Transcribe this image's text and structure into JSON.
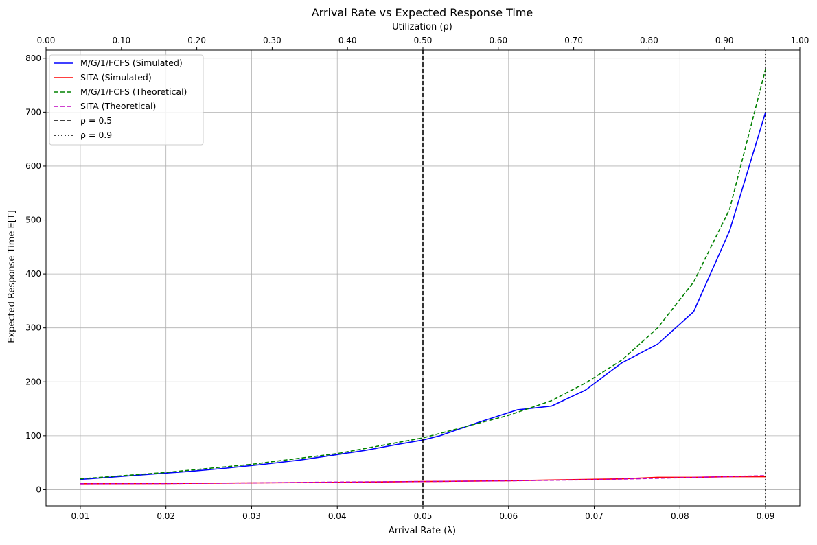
{
  "chart_data": {
    "type": "line",
    "title": "Arrival Rate vs Expected Response Time",
    "xlabel": "Arrival Rate (λ)",
    "ylabel": "Expected Response Time E[T]",
    "top_xlabel": "Utilization (ρ)",
    "xlim": [
      0.006,
      0.094
    ],
    "ylim": [
      -30,
      815
    ],
    "top_xlim": [
      0.0,
      1.0
    ],
    "x_ticks": [
      "0.01",
      "0.02",
      "0.03",
      "0.04",
      "0.05",
      "0.06",
      "0.07",
      "0.08",
      "0.09"
    ],
    "y_ticks": [
      "0",
      "100",
      "200",
      "300",
      "400",
      "500",
      "600",
      "700",
      "800"
    ],
    "top_x_ticks": [
      "0.00",
      "0.10",
      "0.20",
      "0.30",
      "0.40",
      "0.50",
      "0.60",
      "0.70",
      "0.80",
      "0.90",
      "1.00"
    ],
    "grid": true,
    "legend_position": "top-left",
    "series": [
      {
        "name": "M/G/1/FCFS (Simulated)",
        "color": "#0000ff",
        "style": "solid",
        "x": [
          0.01,
          0.0143,
          0.0186,
          0.0229,
          0.0271,
          0.0314,
          0.0357,
          0.04,
          0.0433,
          0.0467,
          0.05,
          0.052,
          0.0565,
          0.061,
          0.065,
          0.069,
          0.0732,
          0.0774,
          0.0816,
          0.0858,
          0.09
        ],
        "values": [
          19,
          24,
          29,
          34,
          40,
          47,
          55,
          65,
          73,
          83,
          92,
          100,
          125,
          148,
          155,
          185,
          235,
          270,
          330,
          480,
          700
        ]
      },
      {
        "name": "SITA (Simulated)",
        "color": "#ff0000",
        "style": "solid",
        "x": [
          0.01,
          0.02,
          0.03,
          0.04,
          0.05,
          0.06,
          0.065,
          0.0732,
          0.0774,
          0.0816,
          0.0858,
          0.09
        ],
        "values": [
          11,
          11.5,
          12.5,
          13.5,
          15,
          16.5,
          18,
          20,
          23,
          23,
          24,
          24
        ]
      },
      {
        "name": "M/G/1/FCFS (Theoretical)",
        "color": "#008000",
        "style": "dashed",
        "x": [
          0.01,
          0.02,
          0.03,
          0.04,
          0.05,
          0.06,
          0.065,
          0.069,
          0.0732,
          0.0774,
          0.0816,
          0.0858,
          0.09
        ],
        "values": [
          20,
          32,
          47,
          67,
          96,
          138,
          165,
          198,
          240,
          300,
          385,
          520,
          780
        ]
      },
      {
        "name": "SITA (Theoretical)",
        "color": "#bf00bf",
        "style": "dashed",
        "x": [
          0.01,
          0.02,
          0.03,
          0.04,
          0.05,
          0.06,
          0.07,
          0.08,
          0.09
        ],
        "values": [
          11,
          11.5,
          12.5,
          14,
          15,
          16.5,
          18.5,
          22,
          26
        ]
      }
    ],
    "reference_lines": [
      {
        "name": "ρ = 0.5",
        "x": 0.05,
        "color": "#000000",
        "style": "dashed"
      },
      {
        "name": "ρ = 0.9",
        "x": 0.09,
        "color": "#000000",
        "style": "dotted"
      }
    ]
  }
}
